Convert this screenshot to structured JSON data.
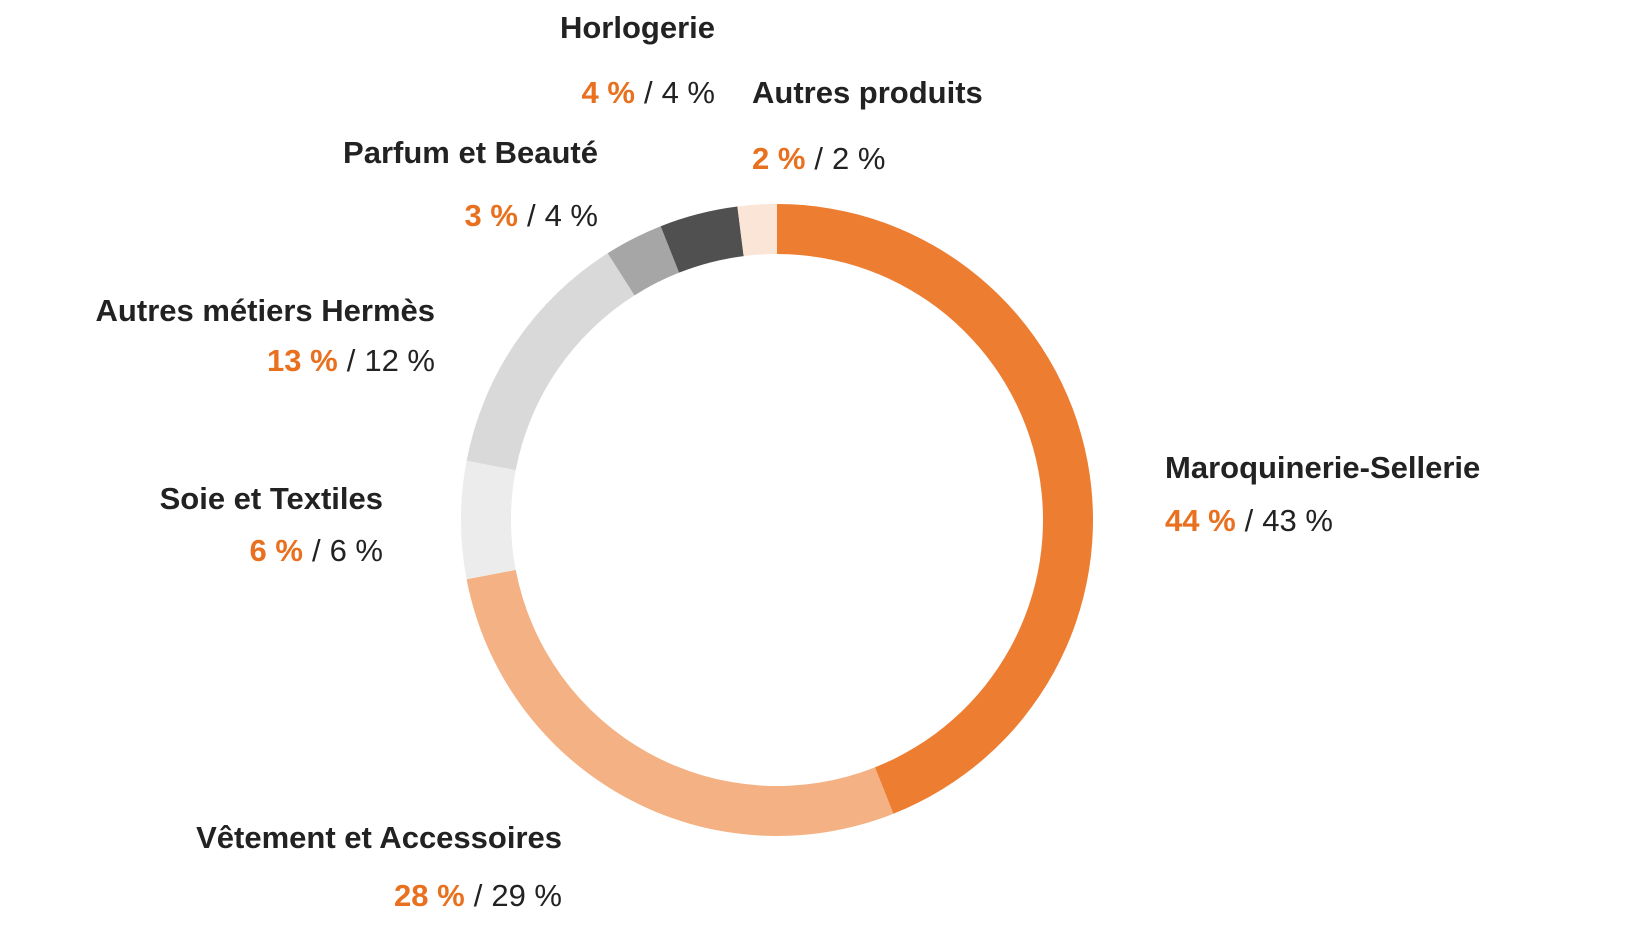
{
  "chart_data": {
    "type": "pie",
    "categories": [
      "Maroquinerie-Sellerie",
      "Vêtement et Accessoires",
      "Soie et Textiles",
      "Autres métiers Hermès",
      "Parfum et Beauté",
      "Horlogerie",
      "Autres produits"
    ],
    "colors": [
      "#ed7d31",
      "#f4b183",
      "#ececec",
      "#d9d9d9",
      "#a6a6a6",
      "#505050",
      "#fbe5d6"
    ],
    "separator": "/",
    "series": [
      {
        "color": "#e8701e",
        "values": [
          44,
          28,
          6,
          13,
          3,
          4,
          2
        ],
        "value_labels": [
          "44 %",
          "28 %",
          "6 %",
          "13 %",
          "3 %",
          "4 %",
          "2 %"
        ]
      },
      {
        "color": "#222222",
        "values": [
          43,
          29,
          6,
          12,
          4,
          4,
          2
        ],
        "value_labels": [
          "43 %",
          "29 %",
          "6 %",
          "12 %",
          "4 %",
          "4 %",
          "2 %"
        ]
      }
    ]
  }
}
